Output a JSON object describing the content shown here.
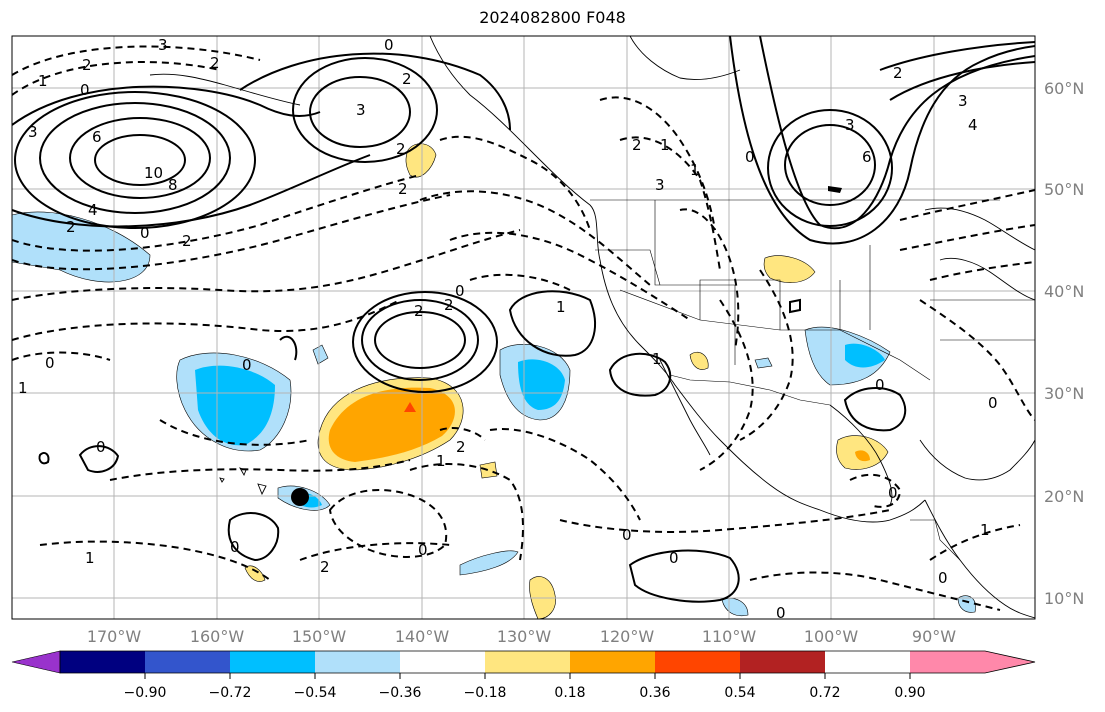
{
  "title": "2024082800 F048",
  "map": {
    "lon_labels": [
      "170°W",
      "160°W",
      "150°W",
      "140°W",
      "130°W",
      "120°W",
      "110°W",
      "100°W",
      "90°W"
    ],
    "lat_labels": [
      "60°N",
      "50°N",
      "40°N",
      "30°N",
      "20°N",
      "10°N"
    ],
    "contour_labels": [
      "3",
      "2",
      "2",
      "1",
      "0",
      "0",
      "3",
      "2",
      "6",
      "10",
      "8",
      "4",
      "2",
      "0",
      "2",
      "3",
      "2",
      "2",
      "2",
      "1",
      "1",
      "3",
      "0",
      "3",
      "6",
      "3",
      "4",
      "2",
      "0",
      "2",
      "2",
      "0",
      "0",
      "0",
      "2",
      "1",
      "1",
      "2",
      "1",
      "0",
      "0",
      "0",
      "0",
      "1",
      "1",
      "0",
      "0",
      "1",
      "0",
      "0",
      "0"
    ]
  },
  "colorbar": {
    "tick_labels": [
      "−0.90",
      "−0.72",
      "−0.54",
      "−0.36",
      "−0.18",
      "0.18",
      "0.36",
      "0.54",
      "0.72",
      "0.90"
    ],
    "colors": [
      "#9932cc",
      "#000080",
      "#3355cc",
      "#00bfff",
      "#b0e0fa",
      "#ffffff",
      "#ffe680",
      "#ffa500",
      "#ff4500",
      "#b22222",
      "#ff88aa"
    ]
  }
}
